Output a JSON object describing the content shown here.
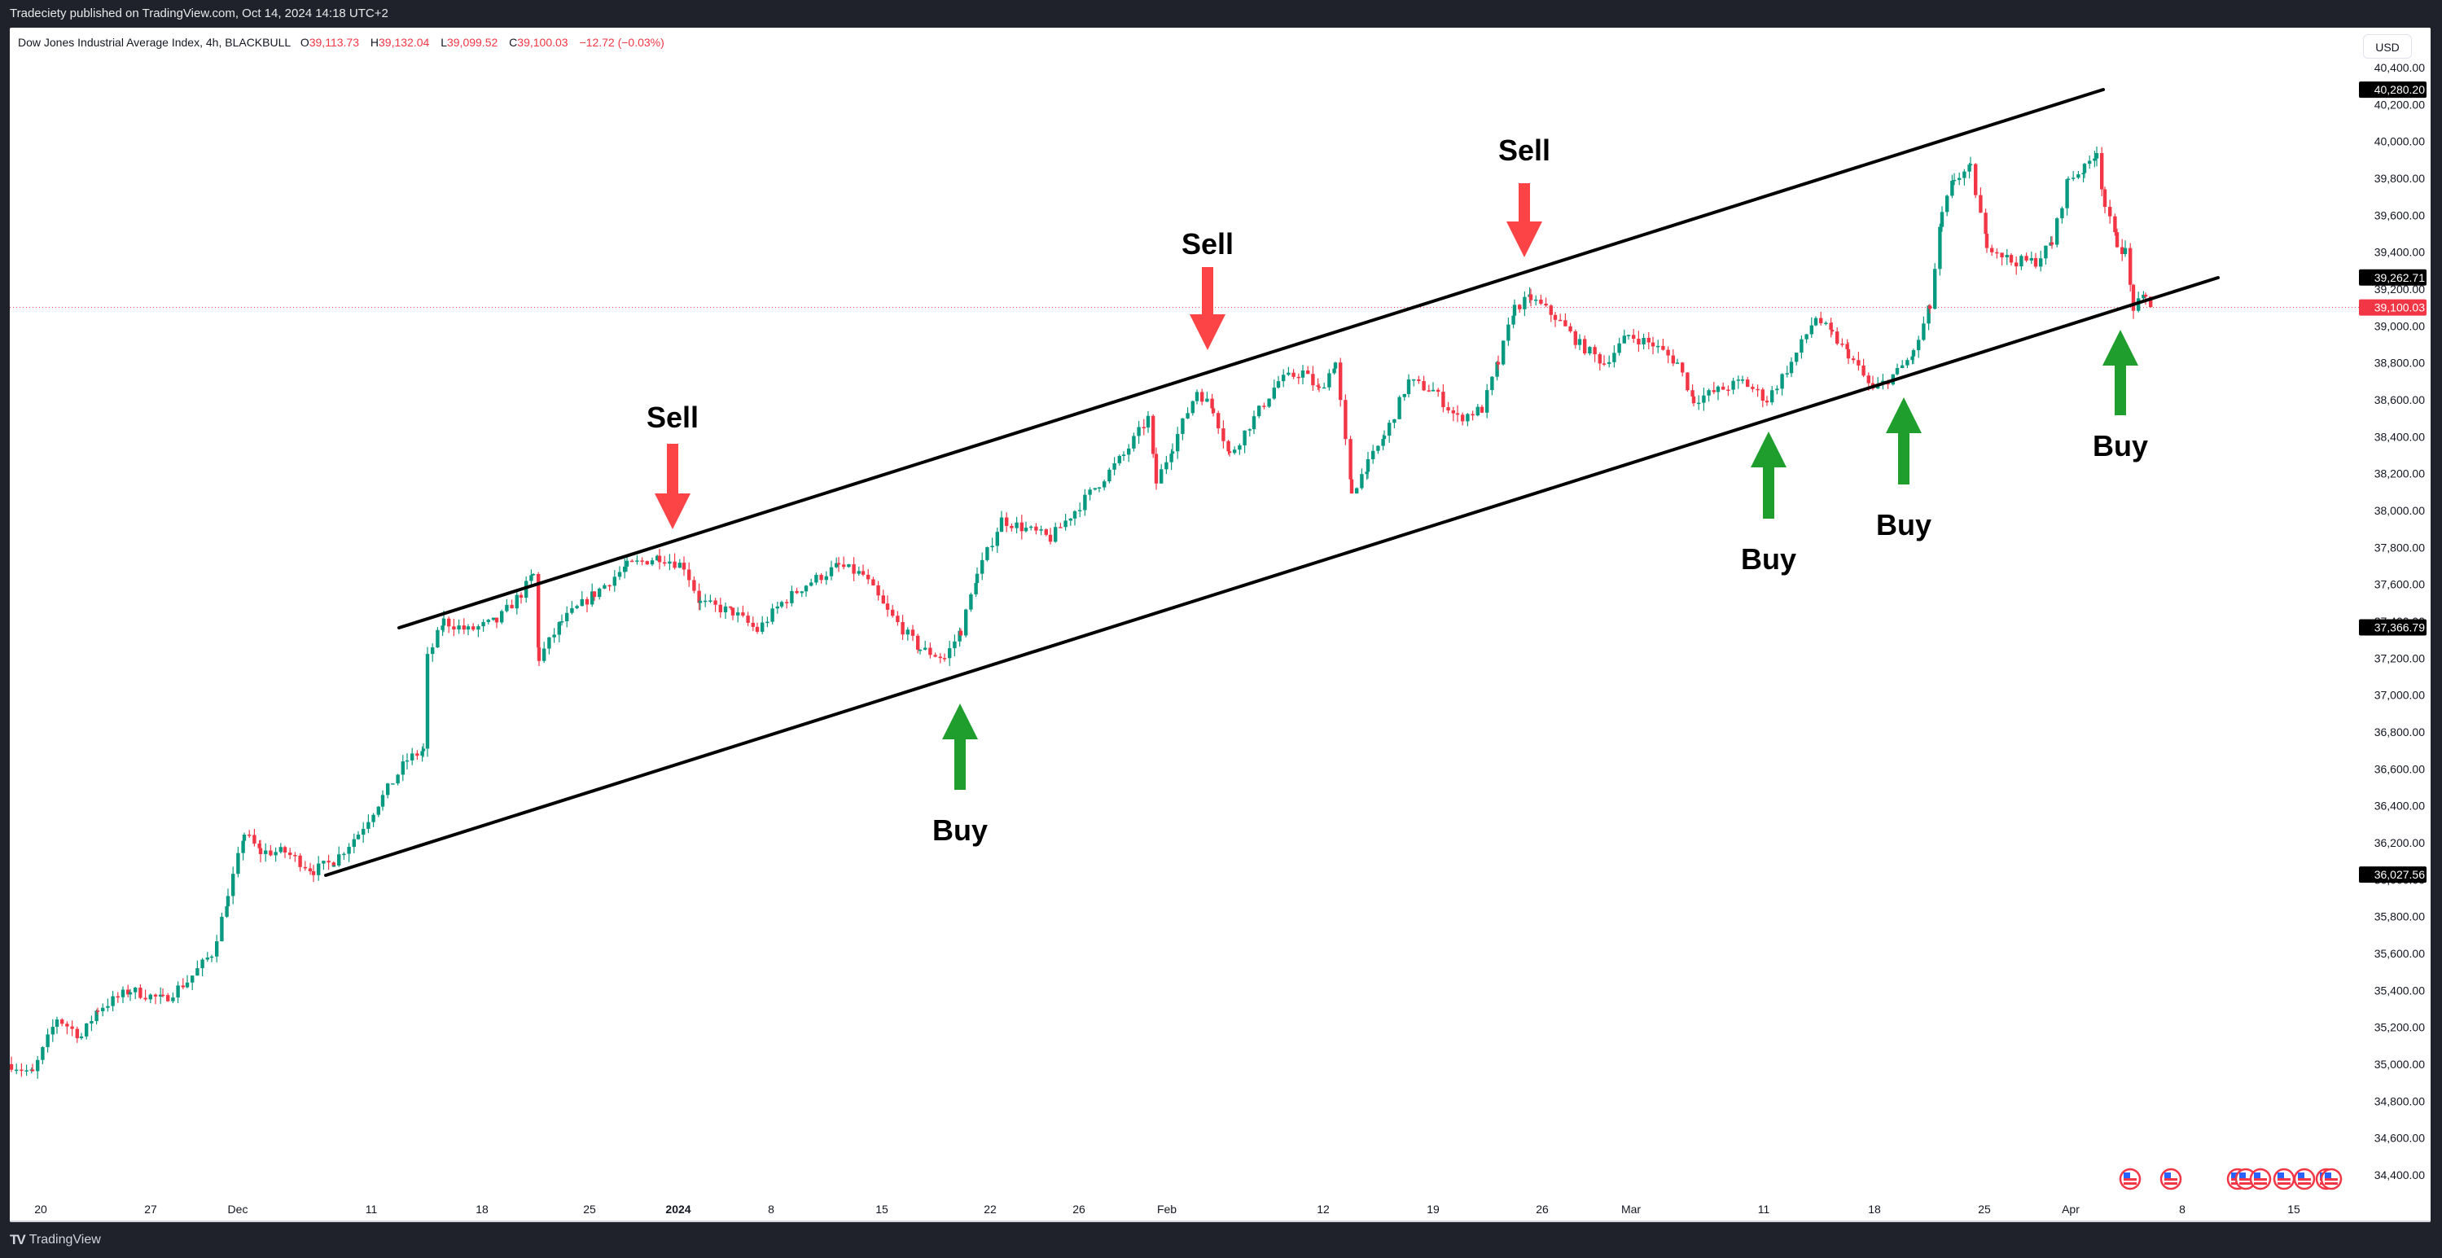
{
  "header": {
    "publish_text": "Tradeciety published on TradingView.com, Oct 14, 2024 14:18 UTC+2"
  },
  "legend": {
    "symbol": "Dow Jones Industrial Average Index, 4h, BLACKBULL",
    "open_label": "O",
    "open": "39,113.73",
    "high_label": "H",
    "high": "39,132.04",
    "low_label": "L",
    "low": "39,099.52",
    "close_label": "C",
    "close": "39,100.03",
    "change": "−12.72 (−0.03%)"
  },
  "price_axis": {
    "currency": "USD",
    "ticks": [
      "40,400.00",
      "40,200.00",
      "40,000.00",
      "39,800.00",
      "39,600.00",
      "39,400.00",
      "39,200.00",
      "39,000.00",
      "38,800.00",
      "38,600.00",
      "38,400.00",
      "38,200.00",
      "38,000.00",
      "37,800.00",
      "37,600.00",
      "37,400.00",
      "37,200.00",
      "37,000.00",
      "36,800.00",
      "36,600.00",
      "36,400.00",
      "36,200.00",
      "36,000.00",
      "35,800.00",
      "35,600.00",
      "35,400.00",
      "35,200.00",
      "35,000.00",
      "34,800.00",
      "34,600.00",
      "34,400.00"
    ],
    "tick_values": [
      40400,
      40200,
      40000,
      39800,
      39600,
      39400,
      39200,
      39000,
      38800,
      38600,
      38400,
      38200,
      38000,
      37800,
      37600,
      37400,
      37200,
      37000,
      36800,
      36600,
      36400,
      36200,
      36000,
      35800,
      35600,
      35400,
      35200,
      35000,
      34800,
      34600,
      34400
    ],
    "markers": [
      {
        "label": "40,280.20",
        "value": 40280.2,
        "bg": "#000000"
      },
      {
        "label": "39,262.71",
        "value": 39262.71,
        "bg": "#000000"
      },
      {
        "label": "39,100.03",
        "value": 39100.03,
        "bg": "#f23645"
      },
      {
        "label": "37,366.79",
        "value": 37366.79,
        "bg": "#000000"
      },
      {
        "label": "36,027.56",
        "value": 36027.56,
        "bg": "#000000"
      }
    ]
  },
  "time_axis": {
    "ticks": [
      {
        "label": "20",
        "x": 50,
        "bold": false
      },
      {
        "label": "27",
        "x": 185,
        "bold": false
      },
      {
        "label": "Dec",
        "x": 292,
        "bold": false
      },
      {
        "label": "11",
        "x": 456,
        "bold": false
      },
      {
        "label": "18",
        "x": 592,
        "bold": false
      },
      {
        "label": "25",
        "x": 724,
        "bold": false
      },
      {
        "label": "2024",
        "x": 833,
        "bold": true
      },
      {
        "label": "8",
        "x": 947,
        "bold": false
      },
      {
        "label": "15",
        "x": 1083,
        "bold": false
      },
      {
        "label": "22",
        "x": 1216,
        "bold": false
      },
      {
        "label": "26",
        "x": 1325,
        "bold": false
      },
      {
        "label": "Feb",
        "x": 1433,
        "bold": false
      },
      {
        "label": "12",
        "x": 1625,
        "bold": false
      },
      {
        "label": "19",
        "x": 1760,
        "bold": false
      },
      {
        "label": "26",
        "x": 1894,
        "bold": false
      },
      {
        "label": "Mar",
        "x": 2003,
        "bold": false
      },
      {
        "label": "11",
        "x": 2166,
        "bold": false
      },
      {
        "label": "18",
        "x": 2302,
        "bold": false
      },
      {
        "label": "25",
        "x": 2437,
        "bold": false
      },
      {
        "label": "Apr",
        "x": 2543,
        "bold": false
      },
      {
        "label": "8",
        "x": 2680,
        "bold": false
      },
      {
        "label": "15",
        "x": 2817,
        "bold": false
      }
    ]
  },
  "footer": {
    "logo_mark": "TV",
    "brand": "TradingView"
  },
  "chart_data": {
    "type": "candlestick",
    "title": "Dow Jones Industrial Average Index, 4h, BLACKBULL",
    "xlabel": "",
    "ylabel": "USD",
    "ylim": [
      34300,
      40500
    ],
    "x_range": [
      "Nov 20 2023",
      "Apr 5 2024"
    ],
    "grid": false,
    "up_color": "#089981",
    "down_color": "#f23645",
    "last_price": 39100.03,
    "price_path": [
      {
        "x": 14,
        "p": 35000
      },
      {
        "x": 40,
        "p": 34950
      },
      {
        "x": 70,
        "p": 35250
      },
      {
        "x": 100,
        "p": 35150
      },
      {
        "x": 120,
        "p": 35300
      },
      {
        "x": 160,
        "p": 35400
      },
      {
        "x": 200,
        "p": 35350
      },
      {
        "x": 230,
        "p": 35450
      },
      {
        "x": 260,
        "p": 35600
      },
      {
        "x": 280,
        "p": 35900
      },
      {
        "x": 300,
        "p": 36250
      },
      {
        "x": 320,
        "p": 36150
      },
      {
        "x": 350,
        "p": 36150
      },
      {
        "x": 385,
        "p": 36050
      },
      {
        "x": 410,
        "p": 36100
      },
      {
        "x": 440,
        "p": 36250
      },
      {
        "x": 470,
        "p": 36450
      },
      {
        "x": 500,
        "p": 36650
      },
      {
        "x": 520,
        "p": 36700
      },
      {
        "x": 525,
        "p": 37200
      },
      {
        "x": 545,
        "p": 37400
      },
      {
        "x": 575,
        "p": 37350
      },
      {
        "x": 610,
        "p": 37400
      },
      {
        "x": 640,
        "p": 37550
      },
      {
        "x": 655,
        "p": 37650
      },
      {
        "x": 662,
        "p": 37200
      },
      {
        "x": 690,
        "p": 37400
      },
      {
        "x": 730,
        "p": 37550
      },
      {
        "x": 770,
        "p": 37700
      },
      {
        "x": 810,
        "p": 37750
      },
      {
        "x": 840,
        "p": 37700
      },
      {
        "x": 860,
        "p": 37500
      },
      {
        "x": 900,
        "p": 37450
      },
      {
        "x": 930,
        "p": 37350
      },
      {
        "x": 960,
        "p": 37500
      },
      {
        "x": 990,
        "p": 37600
      },
      {
        "x": 1030,
        "p": 37700
      },
      {
        "x": 1060,
        "p": 37650
      },
      {
        "x": 1090,
        "p": 37450
      },
      {
        "x": 1130,
        "p": 37250
      },
      {
        "x": 1160,
        "p": 37200
      },
      {
        "x": 1180,
        "p": 37350
      },
      {
        "x": 1200,
        "p": 37650
      },
      {
        "x": 1230,
        "p": 37950
      },
      {
        "x": 1260,
        "p": 37900
      },
      {
        "x": 1290,
        "p": 37850
      },
      {
        "x": 1320,
        "p": 38000
      },
      {
        "x": 1350,
        "p": 38150
      },
      {
        "x": 1380,
        "p": 38300
      },
      {
        "x": 1410,
        "p": 38500
      },
      {
        "x": 1420,
        "p": 38150
      },
      {
        "x": 1440,
        "p": 38350
      },
      {
        "x": 1470,
        "p": 38650
      },
      {
        "x": 1490,
        "p": 38550
      },
      {
        "x": 1510,
        "p": 38300
      },
      {
        "x": 1540,
        "p": 38500
      },
      {
        "x": 1570,
        "p": 38700
      },
      {
        "x": 1600,
        "p": 38750
      },
      {
        "x": 1620,
        "p": 38650
      },
      {
        "x": 1640,
        "p": 38800
      },
      {
        "x": 1660,
        "p": 38100
      },
      {
        "x": 1680,
        "p": 38250
      },
      {
        "x": 1700,
        "p": 38400
      },
      {
        "x": 1730,
        "p": 38700
      },
      {
        "x": 1760,
        "p": 38650
      },
      {
        "x": 1790,
        "p": 38500
      },
      {
        "x": 1820,
        "p": 38550
      },
      {
        "x": 1840,
        "p": 38800
      },
      {
        "x": 1860,
        "p": 39100
      },
      {
        "x": 1880,
        "p": 39150
      },
      {
        "x": 1910,
        "p": 39050
      },
      {
        "x": 1940,
        "p": 38900
      },
      {
        "x": 1970,
        "p": 38800
      },
      {
        "x": 2000,
        "p": 38950
      },
      {
        "x": 2030,
        "p": 38900
      },
      {
        "x": 2060,
        "p": 38800
      },
      {
        "x": 2080,
        "p": 38600
      },
      {
        "x": 2110,
        "p": 38650
      },
      {
        "x": 2140,
        "p": 38700
      },
      {
        "x": 2170,
        "p": 38600
      },
      {
        "x": 2200,
        "p": 38800
      },
      {
        "x": 2230,
        "p": 39050
      },
      {
        "x": 2250,
        "p": 38950
      },
      {
        "x": 2270,
        "p": 38850
      },
      {
        "x": 2300,
        "p": 38650
      },
      {
        "x": 2330,
        "p": 38750
      },
      {
        "x": 2350,
        "p": 38850
      },
      {
        "x": 2370,
        "p": 39100
      },
      {
        "x": 2385,
        "p": 39600
      },
      {
        "x": 2400,
        "p": 39800
      },
      {
        "x": 2420,
        "p": 39850
      },
      {
        "x": 2440,
        "p": 39450
      },
      {
        "x": 2470,
        "p": 39350
      },
      {
        "x": 2500,
        "p": 39350
      },
      {
        "x": 2520,
        "p": 39450
      },
      {
        "x": 2540,
        "p": 39800
      },
      {
        "x": 2560,
        "p": 39850
      },
      {
        "x": 2575,
        "p": 39950
      },
      {
        "x": 2585,
        "p": 39650
      },
      {
        "x": 2600,
        "p": 39450
      },
      {
        "x": 2610,
        "p": 39400
      },
      {
        "x": 2620,
        "p": 39100
      },
      {
        "x": 2635,
        "p": 39150
      },
      {
        "x": 2645,
        "p": 39100
      }
    ],
    "channel": {
      "upper": {
        "x1": 490,
        "y1": 771,
        "x2": 2583,
        "y2": 110
      },
      "lower": {
        "x1": 400,
        "y1": 1075,
        "x2": 2724,
        "y2": 341
      }
    },
    "annotations": [
      {
        "type": "sell",
        "label": "Sell",
        "x": 826,
        "label_y": 513,
        "arrow_top": 545,
        "arrow_tip": 650
      },
      {
        "type": "sell",
        "label": "Sell",
        "x": 1483,
        "label_y": 300,
        "arrow_top": 328,
        "arrow_tip": 430
      },
      {
        "type": "sell",
        "label": "Sell",
        "x": 1872,
        "label_y": 185,
        "arrow_top": 225,
        "arrow_tip": 316
      },
      {
        "type": "buy",
        "label": "Buy",
        "x": 1179,
        "label_y": 1020,
        "arrow_top": 864,
        "arrow_bot": 970
      },
      {
        "type": "buy",
        "label": "Buy",
        "x": 2172,
        "label_y": 687,
        "arrow_top": 530,
        "arrow_bot": 637
      },
      {
        "type": "buy",
        "label": "Buy",
        "x": 2338,
        "label_y": 645,
        "arrow_top": 488,
        "arrow_bot": 595
      },
      {
        "type": "buy",
        "label": "Buy",
        "x": 2604,
        "label_y": 548,
        "arrow_top": 405,
        "arrow_bot": 510
      }
    ],
    "sell_color": "#fc4345",
    "buy_color": "#1f9e2d",
    "events": [
      {
        "icon": "us-flag-icon",
        "x": 2616
      },
      {
        "icon": "us-flag-icon",
        "x": 2666
      },
      {
        "icon": "us-flag-icon",
        "x": 2748
      },
      {
        "icon": "us-flag-icon",
        "x": 2758
      },
      {
        "icon": "us-flag-icon",
        "x": 2776
      },
      {
        "icon": "us-flag-icon",
        "x": 2805
      },
      {
        "icon": "us-flag-icon",
        "x": 2830
      },
      {
        "icon": "us-flag-icon",
        "x": 2857
      },
      {
        "icon": "us-flag-icon",
        "x": 2863
      }
    ]
  }
}
